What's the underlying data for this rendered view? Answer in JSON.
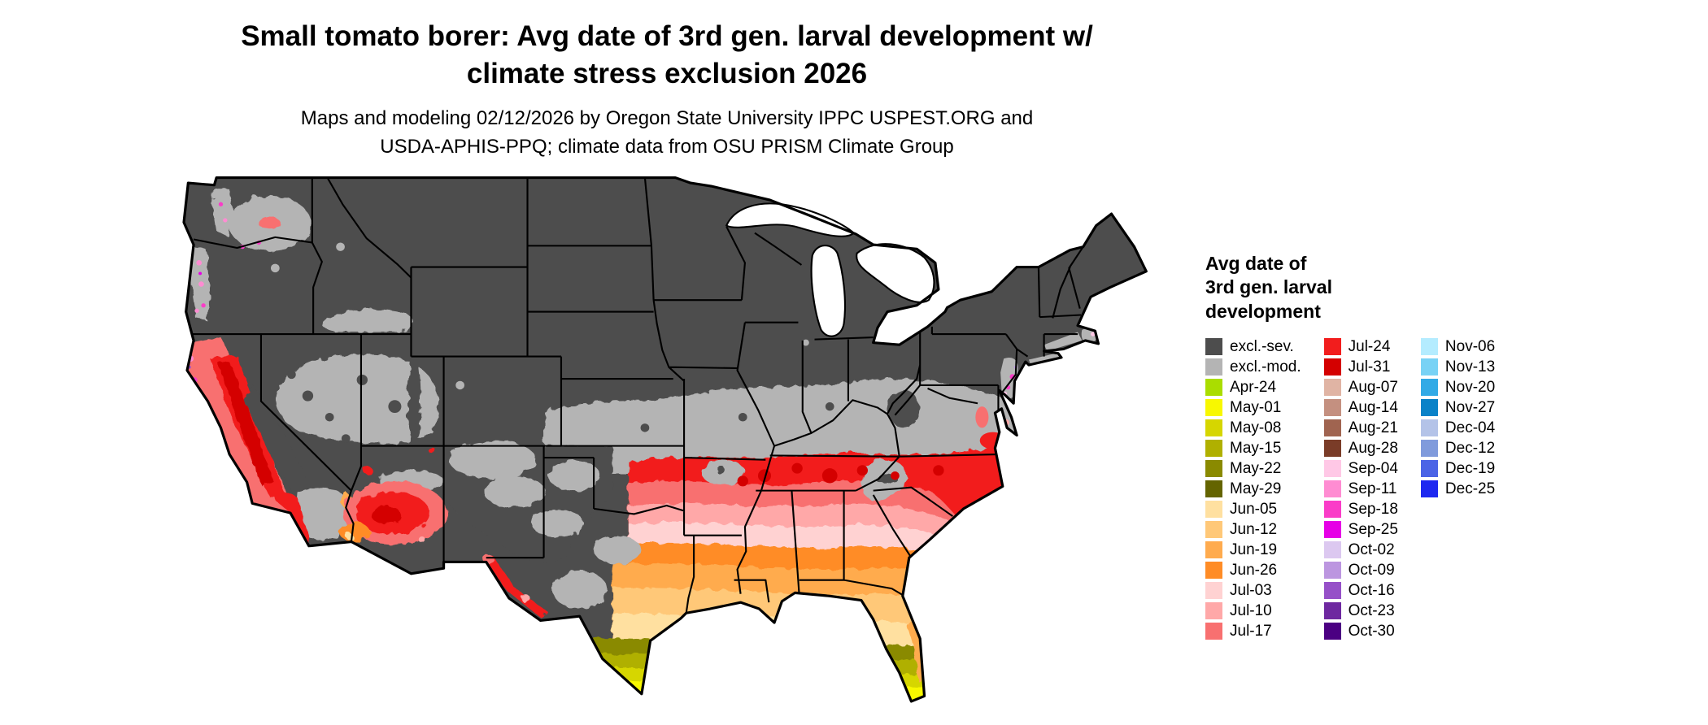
{
  "header": {
    "title_line1": "Small tomato borer: Avg date of 3rd gen. larval development w/",
    "title_line2": "climate stress exclusion 2026",
    "subtitle_line1": "Maps and modeling 02/12/2026 by Oregon State University IPPC USPEST.ORG and",
    "subtitle_line2": "USDA-APHIS-PPQ; climate data from OSU PRISM Climate Group"
  },
  "legend": {
    "title_lines": [
      "Avg date of",
      "3rd gen. larval",
      "development"
    ],
    "columns": [
      [
        "excl.-sev.",
        "excl.-mod.",
        "Apr-24",
        "May-01",
        "May-08",
        "May-15",
        "May-22",
        "May-29",
        "Jun-05",
        "Jun-12",
        "Jun-19",
        "Jun-26",
        "Jul-03",
        "Jul-10",
        "Jul-17"
      ],
      [
        "Jul-24",
        "Jul-31",
        "Aug-07",
        "Aug-14",
        "Aug-21",
        "Aug-28",
        "Sep-04",
        "Sep-11",
        "Sep-18",
        "Sep-25",
        "Oct-02",
        "Oct-09",
        "Oct-16",
        "Oct-23",
        "Oct-30"
      ],
      [
        "Nov-06",
        "Nov-13",
        "Nov-20",
        "Nov-27",
        "Dec-04",
        "Dec-12",
        "Dec-19",
        "Dec-25"
      ]
    ]
  },
  "palette": {
    "excl.-sev.": "#4d4d4d",
    "excl.-mod.": "#b4b4b4",
    "Apr-24": "#aadd00",
    "May-01": "#f8f800",
    "May-08": "#d6d600",
    "May-15": "#b0b000",
    "May-22": "#8a8a00",
    "May-29": "#646400",
    "Jun-05": "#ffe0a0",
    "Jun-12": "#ffc878",
    "Jun-19": "#ffab4e",
    "Jun-26": "#ff8c26",
    "Jul-03": "#ffd2d2",
    "Jul-10": "#ffa8a8",
    "Jul-17": "#f87070",
    "Jul-24": "#f21d1d",
    "Jul-31": "#d40000",
    "Aug-07": "#e0b4a4",
    "Aug-14": "#c49080",
    "Aug-21": "#a06450",
    "Aug-28": "#7a3c28",
    "Sep-04": "#ffc8e6",
    "Sep-11": "#ff8cd2",
    "Sep-18": "#fa3cc8",
    "Sep-25": "#e600e6",
    "Oct-02": "#dcc8f0",
    "Oct-09": "#bc96e0",
    "Oct-16": "#9650c8",
    "Oct-23": "#6e28a0",
    "Oct-30": "#4b0082",
    "Nov-06": "#b4ecff",
    "Nov-13": "#78d2f5",
    "Nov-20": "#32aae6",
    "Nov-27": "#0a82c8",
    "Dec-04": "#b4c3e8",
    "Dec-12": "#809bdc",
    "Dec-19": "#4b64e6",
    "Dec-25": "#1e28f0"
  },
  "map": {
    "description": "Continental US raster map of average date of 3rd generation larval development with climate stress exclusion"
  }
}
